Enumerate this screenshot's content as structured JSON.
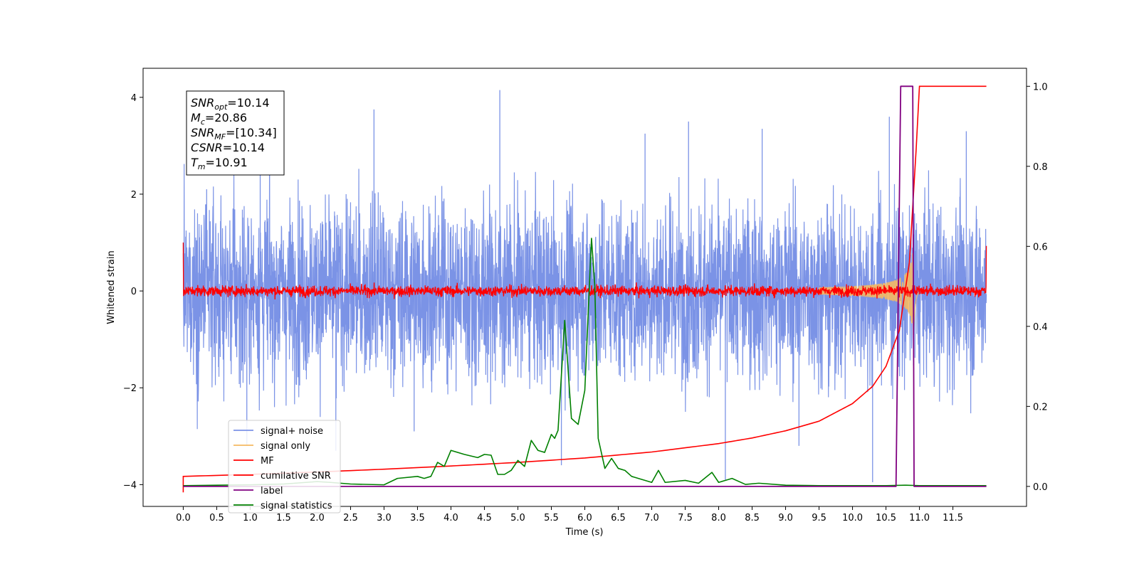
{
  "chart_data": {
    "type": "line",
    "title": "",
    "xlabel": "Time (s)",
    "ylabel_left": "Whitened strain",
    "ylabel_right": "",
    "xlim": [
      -0.6,
      12.6
    ],
    "ylim_left": [
      -4.45,
      4.6
    ],
    "ylim_right": [
      -0.05,
      1.045
    ],
    "x_ticks": [
      0.0,
      0.5,
      1.0,
      1.5,
      2.0,
      2.5,
      3.0,
      3.5,
      4.0,
      4.5,
      5.0,
      5.5,
      6.0,
      6.5,
      7.0,
      7.5,
      8.0,
      8.5,
      9.0,
      9.5,
      10.0,
      10.5,
      11.0,
      11.5
    ],
    "x_tick_labels": [
      "0.0",
      "0.5",
      "1.0",
      "1.5",
      "2.0",
      "2.5",
      "3.0",
      "3.5",
      "4.0",
      "4.5",
      "5.0",
      "5.5",
      "6.0",
      "6.5",
      "7.0",
      "7.5",
      "8.0",
      "8.5",
      "9.0",
      "9.5",
      "10.0",
      "10.5",
      "11.0",
      "11.5"
    ],
    "y_left_ticks": [
      -4,
      -2,
      0,
      2,
      4
    ],
    "y_left_tick_labels": [
      "−4",
      "−2",
      "0",
      "2",
      "4"
    ],
    "y_right_ticks": [
      0.0,
      0.2,
      0.4,
      0.6,
      0.8,
      1.0
    ],
    "y_right_tick_labels": [
      "0.0",
      "0.2",
      "0.4",
      "0.6",
      "0.8",
      "1.0"
    ],
    "grid": false,
    "legend_position": "lower-left",
    "annotation": {
      "lines": [
        {
          "sym": "SNR",
          "sub": "opt",
          "value": "=10.14"
        },
        {
          "sym": "M",
          "sub": "c",
          "value": "=20.86"
        },
        {
          "sym": "SNR",
          "sub": "MF",
          "value": "=[10.34]"
        },
        {
          "sym": "CSNR",
          "sub": "",
          "value": "=10.14"
        },
        {
          "sym": "T",
          "sub": "m",
          "value": "=10.91"
        }
      ]
    },
    "series": [
      {
        "name": "signal+ noise",
        "color": "#7b93e6",
        "axis": "left",
        "style": "dense-noise",
        "x_range": [
          0.0,
          12.0
        ],
        "typical_amplitude": 1.8,
        "peak_max": 4.15,
        "peak_min": -3.95
      },
      {
        "name": "signal only",
        "color": "#f5b962",
        "axis": "left",
        "style": "chirp",
        "x_range": [
          9.5,
          11.0
        ],
        "peak_amplitude": 0.95,
        "merger_time": 10.91
      },
      {
        "name": "MF",
        "color": "#ff0000",
        "axis": "left",
        "style": "dense-noise",
        "x_range": [
          0.0,
          12.0
        ],
        "typical_amplitude": 0.13,
        "start_value": 1.0,
        "end_value": 0.93
      },
      {
        "name": "cumilative SNR",
        "color": "#ff0000",
        "axis": "right",
        "x": [
          0.0,
          1.0,
          2.0,
          3.0,
          4.0,
          5.0,
          6.0,
          7.0,
          8.0,
          8.5,
          9.0,
          9.5,
          10.0,
          10.3,
          10.5,
          10.7,
          10.85,
          10.95,
          11.0,
          11.1,
          12.0
        ],
        "values": [
          0.025,
          0.03,
          0.036,
          0.043,
          0.051,
          0.06,
          0.071,
          0.086,
          0.107,
          0.121,
          0.139,
          0.163,
          0.207,
          0.25,
          0.3,
          0.39,
          0.56,
          0.84,
          1.0,
          1.0,
          1.0
        ]
      },
      {
        "name": "label",
        "color": "#800080",
        "axis": "right",
        "x": [
          0.0,
          10.65,
          10.72,
          10.9,
          10.92,
          12.0
        ],
        "values": [
          0.0,
          0.0,
          1.0,
          1.0,
          0.0,
          0.0
        ]
      },
      {
        "name": "signal statistics",
        "color": "#008000",
        "axis": "right",
        "x": [
          0.0,
          0.5,
          1.0,
          1.5,
          2.0,
          2.2,
          2.5,
          3.0,
          3.2,
          3.5,
          3.6,
          3.7,
          3.8,
          3.9,
          4.0,
          4.2,
          4.4,
          4.5,
          4.6,
          4.7,
          4.8,
          4.9,
          5.0,
          5.1,
          5.2,
          5.3,
          5.4,
          5.5,
          5.55,
          5.6,
          5.7,
          5.8,
          5.9,
          6.0,
          6.1,
          6.15,
          6.2,
          6.3,
          6.4,
          6.5,
          6.6,
          6.7,
          6.8,
          7.0,
          7.1,
          7.2,
          7.5,
          7.7,
          7.9,
          8.0,
          8.2,
          8.4,
          8.6,
          9.0,
          9.5,
          10.0,
          10.5,
          10.8,
          11.0,
          12.0
        ],
        "values": [
          0.002,
          0.003,
          0.004,
          0.006,
          0.012,
          0.01,
          0.006,
          0.004,
          0.02,
          0.025,
          0.02,
          0.025,
          0.06,
          0.05,
          0.09,
          0.08,
          0.072,
          0.08,
          0.078,
          0.03,
          0.03,
          0.04,
          0.065,
          0.05,
          0.115,
          0.09,
          0.085,
          0.13,
          0.12,
          0.14,
          0.415,
          0.17,
          0.155,
          0.24,
          0.62,
          0.5,
          0.12,
          0.045,
          0.07,
          0.045,
          0.04,
          0.025,
          0.02,
          0.01,
          0.04,
          0.01,
          0.015,
          0.008,
          0.035,
          0.01,
          0.02,
          0.005,
          0.008,
          0.003,
          0.002,
          0.002,
          0.002,
          0.003,
          0.002,
          0.002
        ]
      }
    ]
  }
}
